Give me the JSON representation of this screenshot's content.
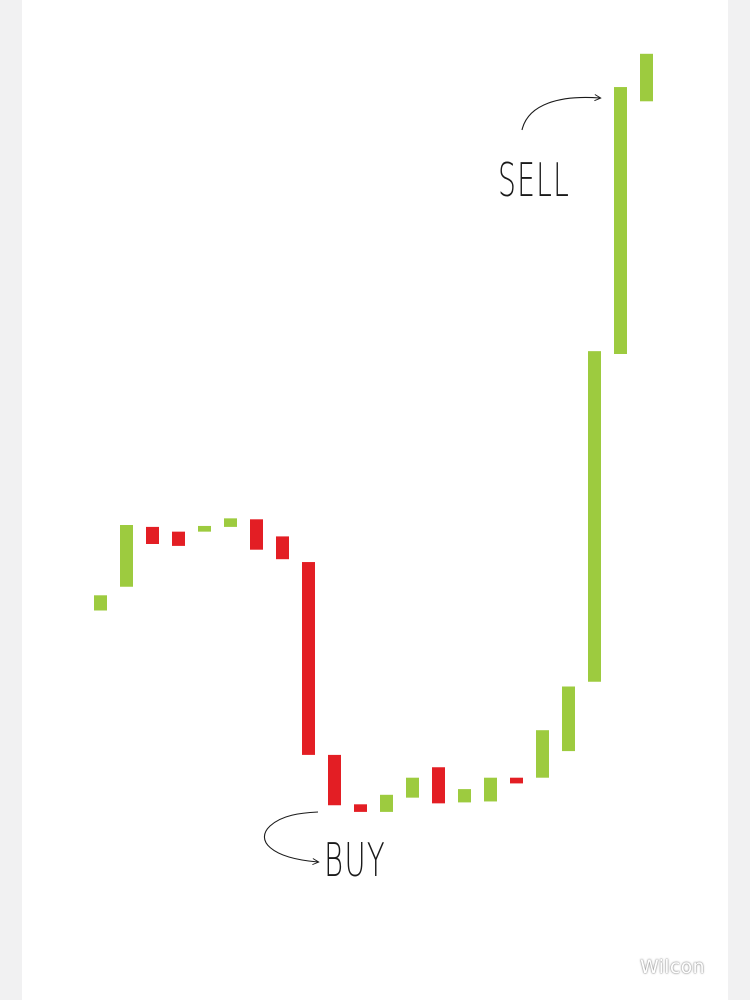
{
  "colors": {
    "up": "#9dcb3f",
    "down": "#e31e24",
    "ink": "#1a1a1a",
    "background": "#ffffff"
  },
  "chart_data": {
    "type": "bar",
    "subtype": "candlestick-bodies",
    "title": "",
    "xlabel": "",
    "ylabel": "",
    "grid": false,
    "axes_visible": false,
    "ylim": [
      0,
      100
    ],
    "candles": [
      {
        "open": 41.0,
        "close": 42.6,
        "direction": "up"
      },
      {
        "open": 43.5,
        "close": 50.0,
        "direction": "up"
      },
      {
        "open": 49.8,
        "close": 48.0,
        "direction": "down"
      },
      {
        "open": 49.3,
        "close": 47.8,
        "direction": "down"
      },
      {
        "open": 49.3,
        "close": 49.9,
        "direction": "up"
      },
      {
        "open": 49.8,
        "close": 50.7,
        "direction": "up"
      },
      {
        "open": 50.6,
        "close": 47.4,
        "direction": "down"
      },
      {
        "open": 48.8,
        "close": 46.4,
        "direction": "down"
      },
      {
        "open": 46.1,
        "close": 25.8,
        "direction": "down"
      },
      {
        "open": 25.8,
        "close": 20.5,
        "direction": "down"
      },
      {
        "open": 20.6,
        "close": 19.8,
        "direction": "down"
      },
      {
        "open": 19.8,
        "close": 21.6,
        "direction": "up"
      },
      {
        "open": 21.3,
        "close": 23.4,
        "direction": "up"
      },
      {
        "open": 24.5,
        "close": 20.7,
        "direction": "down"
      },
      {
        "open": 20.8,
        "close": 22.2,
        "direction": "up"
      },
      {
        "open": 20.9,
        "close": 23.4,
        "direction": "up"
      },
      {
        "open": 23.4,
        "close": 22.8,
        "direction": "down"
      },
      {
        "open": 23.4,
        "close": 28.4,
        "direction": "up"
      },
      {
        "open": 26.2,
        "close": 33.0,
        "direction": "up"
      },
      {
        "open": 33.5,
        "close": 68.3,
        "direction": "up"
      },
      {
        "open": 68.0,
        "close": 96.1,
        "direction": "up"
      },
      {
        "open": 94.6,
        "close": 99.6,
        "direction": "up"
      }
    ],
    "annotations": [
      {
        "label": "BUY",
        "candle_index": 9,
        "arrow": "curved"
      },
      {
        "label": "SELL",
        "candle_index": 20,
        "arrow": "curved"
      }
    ]
  },
  "watermark": "Wilcon"
}
